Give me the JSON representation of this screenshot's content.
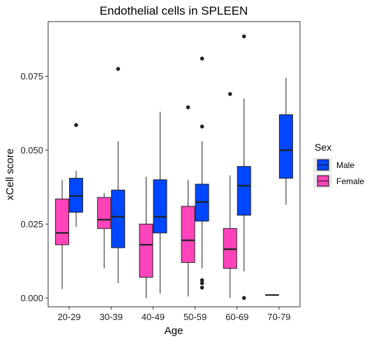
{
  "chart_data": {
    "type": "boxplot",
    "title": "Endothelial cells in SPLEEN",
    "xlabel": "Age",
    "ylabel": "xCell score",
    "categories": [
      "20-29",
      "30-39",
      "40-49",
      "50-59",
      "60-69",
      "70-79"
    ],
    "ylim": [
      -0.003,
      0.0935
    ],
    "yticks": [
      0.0,
      0.025,
      0.05,
      0.075
    ],
    "ytick_labels": [
      "0.000",
      "0.025",
      "0.050",
      "0.075"
    ],
    "grid": false,
    "legend": {
      "title": "Sex",
      "position": "right",
      "entries": [
        {
          "label": "Male",
          "color": "#0047ff"
        },
        {
          "label": "Female",
          "color": "#ff44bb"
        }
      ]
    },
    "series": [
      {
        "name": "Female",
        "color": "#ff44bb",
        "boxes": [
          {
            "category": "20-29",
            "min": 0.003,
            "q1": 0.018,
            "median": 0.022,
            "q3": 0.0335,
            "max": 0.04,
            "outliers": []
          },
          {
            "category": "30-39",
            "min": 0.01,
            "q1": 0.0235,
            "median": 0.0265,
            "q3": 0.034,
            "max": 0.0355,
            "outliers": []
          },
          {
            "category": "40-49",
            "min": 0.0,
            "q1": 0.007,
            "median": 0.018,
            "q3": 0.025,
            "max": 0.041,
            "outliers": []
          },
          {
            "category": "50-59",
            "min": 0.0005,
            "q1": 0.012,
            "median": 0.0195,
            "q3": 0.031,
            "max": 0.04,
            "outliers": [
              0.0645
            ]
          },
          {
            "category": "60-69",
            "min": 0.0,
            "q1": 0.01,
            "median": 0.0165,
            "q3": 0.0235,
            "max": 0.0415,
            "outliers": [
              0.069
            ]
          },
          {
            "category": "70-79",
            "min": 0.001,
            "q1": 0.001,
            "median": 0.001,
            "q3": 0.001,
            "max": 0.001,
            "outliers": []
          }
        ]
      },
      {
        "name": "Male",
        "color": "#0047ff",
        "boxes": [
          {
            "category": "20-29",
            "min": 0.024,
            "q1": 0.029,
            "median": 0.0345,
            "q3": 0.0405,
            "max": 0.043,
            "outliers": [
              0.0585
            ]
          },
          {
            "category": "30-39",
            "min": 0.005,
            "q1": 0.017,
            "median": 0.0275,
            "q3": 0.0365,
            "max": 0.053,
            "outliers": [
              0.0775
            ]
          },
          {
            "category": "40-49",
            "min": 0.0015,
            "q1": 0.022,
            "median": 0.0275,
            "q3": 0.04,
            "max": 0.063,
            "outliers": []
          },
          {
            "category": "50-59",
            "min": 0.01,
            "q1": 0.026,
            "median": 0.0325,
            "q3": 0.0385,
            "max": 0.053,
            "outliers": [
              0.081,
              0.058,
              0.006,
              0.005,
              0.0035
            ]
          },
          {
            "category": "60-69",
            "min": 0.009,
            "q1": 0.028,
            "median": 0.038,
            "q3": 0.0445,
            "max": 0.0675,
            "outliers": [
              0.0885,
              0.0
            ]
          },
          {
            "category": "70-79",
            "min": 0.0315,
            "q1": 0.0405,
            "median": 0.05,
            "q3": 0.062,
            "max": 0.0745,
            "outliers": []
          }
        ]
      }
    ]
  }
}
